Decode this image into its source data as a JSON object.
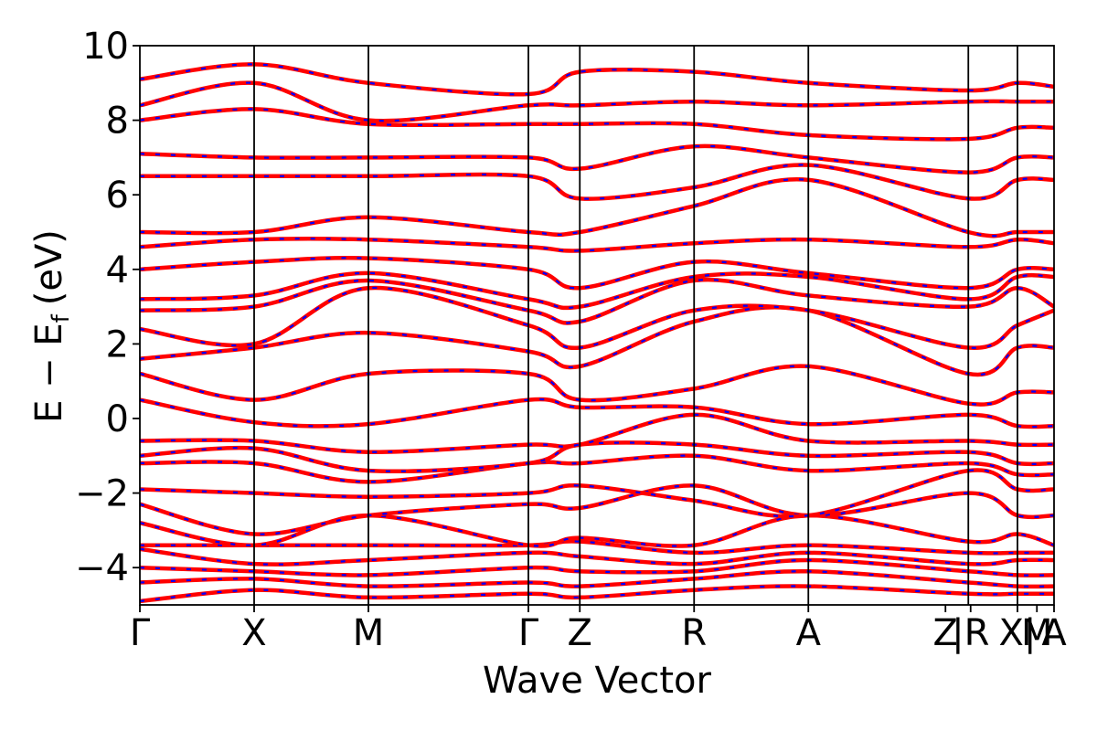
{
  "chart_data": {
    "type": "line",
    "title": "",
    "xlabel": "Wave Vector",
    "ylabel": "E − E",
    "ylabel_subscript": "f",
    "ylabel_unit": "(eV)",
    "ylim": [
      -5,
      10
    ],
    "yticks": [
      -4,
      -2,
      0,
      2,
      4,
      6,
      8,
      10
    ],
    "ytick_labels": [
      "−4",
      "−2",
      "0",
      "2",
      "4",
      "6",
      "8",
      "10"
    ],
    "path_labels": [
      "Γ",
      "X",
      "M",
      "Γ",
      "Z",
      "R",
      "A",
      "Z",
      "|R",
      "X|",
      "M",
      "A"
    ],
    "path_label_positions": [
      0,
      1,
      2,
      3.4,
      3.85,
      4.85,
      5.85,
      7.05,
      7.27,
      7.68,
      7.85,
      8.0
    ],
    "path_segment_boundaries": [
      0,
      1,
      2,
      3.4,
      3.85,
      4.85,
      5.85,
      7.25,
      7.68,
      8.0
    ],
    "grid": false,
    "legend": false,
    "series_colors": {
      "band": "#ff0000",
      "overlay": "#0000ff"
    },
    "series": [
      {
        "band": 1,
        "values": [
          [
            0,
            -4.9
          ],
          [
            1,
            -4.6
          ],
          [
            2,
            -4.8
          ],
          [
            3.4,
            -4.7
          ],
          [
            3.85,
            -4.8
          ],
          [
            4.85,
            -4.6
          ],
          [
            5.85,
            -4.5
          ],
          [
            7.25,
            -4.7
          ],
          [
            7.68,
            -4.7
          ],
          [
            8.0,
            -4.7
          ]
        ]
      },
      {
        "band": 2,
        "values": [
          [
            0,
            -4.4
          ],
          [
            1,
            -4.3
          ],
          [
            2,
            -4.5
          ],
          [
            3.4,
            -4.4
          ],
          [
            3.85,
            -4.5
          ],
          [
            4.85,
            -4.3
          ],
          [
            5.85,
            -4.1
          ],
          [
            7.25,
            -4.4
          ],
          [
            7.68,
            -4.5
          ],
          [
            8.0,
            -4.5
          ]
        ]
      },
      {
        "band": 3,
        "values": [
          [
            0,
            -4.0
          ],
          [
            1,
            -4.1
          ],
          [
            2,
            -4.2
          ],
          [
            3.4,
            -4.0
          ],
          [
            3.85,
            -4.1
          ],
          [
            4.85,
            -4.1
          ],
          [
            5.85,
            -3.8
          ],
          [
            7.25,
            -4.1
          ],
          [
            7.68,
            -4.2
          ],
          [
            8.0,
            -4.2
          ]
        ]
      },
      {
        "band": 4,
        "values": [
          [
            0,
            -3.5
          ],
          [
            1,
            -3.9
          ],
          [
            2,
            -3.8
          ],
          [
            3.4,
            -3.6
          ],
          [
            3.85,
            -3.7
          ],
          [
            4.85,
            -3.9
          ],
          [
            5.85,
            -3.6
          ],
          [
            7.25,
            -3.9
          ],
          [
            7.68,
            -3.8
          ],
          [
            8.0,
            -3.8
          ]
        ]
      },
      {
        "band": 5,
        "values": [
          [
            0,
            -3.4
          ],
          [
            1,
            -3.4
          ],
          [
            2,
            -3.4
          ],
          [
            3.4,
            -3.4
          ],
          [
            3.85,
            -3.3
          ],
          [
            4.85,
            -3.6
          ],
          [
            5.85,
            -3.4
          ],
          [
            7.25,
            -3.6
          ],
          [
            7.68,
            -3.6
          ],
          [
            8.0,
            -3.6
          ]
        ]
      },
      {
        "band": 6,
        "values": [
          [
            0,
            -2.8
          ],
          [
            1,
            -3.4
          ],
          [
            2,
            -2.6
          ],
          [
            3.4,
            -3.4
          ],
          [
            3.85,
            -3.2
          ],
          [
            4.85,
            -3.4
          ],
          [
            5.85,
            -2.6
          ],
          [
            7.25,
            -3.3
          ],
          [
            7.68,
            -3.1
          ],
          [
            8.0,
            -3.4
          ]
        ]
      },
      {
        "band": 7,
        "values": [
          [
            0,
            -2.3
          ],
          [
            1,
            -3.1
          ],
          [
            2,
            -2.6
          ],
          [
            3.4,
            -2.3
          ],
          [
            3.85,
            -2.4
          ],
          [
            4.85,
            -1.8
          ],
          [
            5.85,
            -2.6
          ],
          [
            7.25,
            -2.0
          ],
          [
            7.68,
            -2.6
          ],
          [
            8.0,
            -2.6
          ]
        ]
      },
      {
        "band": 8,
        "values": [
          [
            0,
            -1.9
          ],
          [
            1,
            -2.0
          ],
          [
            2,
            -2.1
          ],
          [
            3.4,
            -2.0
          ],
          [
            3.85,
            -1.8
          ],
          [
            4.85,
            -2.2
          ],
          [
            5.85,
            -2.6
          ],
          [
            7.25,
            -1.4
          ],
          [
            7.68,
            -1.9
          ],
          [
            8.0,
            -1.9
          ]
        ]
      },
      {
        "band": 9,
        "values": [
          [
            0,
            -1.2
          ],
          [
            1,
            -1.2
          ],
          [
            2,
            -1.7
          ],
          [
            3.4,
            -1.2
          ],
          [
            3.85,
            -1.2
          ],
          [
            4.85,
            -1.0
          ],
          [
            5.85,
            -1.4
          ],
          [
            7.25,
            -1.2
          ],
          [
            7.68,
            -1.5
          ],
          [
            8.0,
            -1.5
          ]
        ]
      },
      {
        "band": 10,
        "values": [
          [
            0,
            -1.0
          ],
          [
            1,
            -0.8
          ],
          [
            2,
            -1.4
          ],
          [
            3.4,
            -1.2
          ],
          [
            3.85,
            -0.7
          ],
          [
            4.85,
            -0.7
          ],
          [
            5.85,
            -1.0
          ],
          [
            7.25,
            -0.9
          ],
          [
            7.68,
            -1.2
          ],
          [
            8.0,
            -1.2
          ]
        ]
      },
      {
        "band": 11,
        "values": [
          [
            0,
            -0.6
          ],
          [
            1,
            -0.6
          ],
          [
            2,
            -0.9
          ],
          [
            3.4,
            -0.7
          ],
          [
            3.85,
            -0.7
          ],
          [
            4.85,
            0.1
          ],
          [
            5.85,
            -0.6
          ],
          [
            7.25,
            -0.6
          ],
          [
            7.68,
            -0.7
          ],
          [
            8.0,
            -0.7
          ]
        ]
      },
      {
        "band": 12,
        "values": [
          [
            0,
            0.5
          ],
          [
            1,
            -0.1
          ],
          [
            2,
            -0.15
          ],
          [
            3.4,
            0.5
          ],
          [
            3.85,
            0.3
          ],
          [
            4.85,
            0.3
          ],
          [
            5.85,
            -0.15
          ],
          [
            7.25,
            0.1
          ],
          [
            7.68,
            -0.2
          ],
          [
            8.0,
            -0.2
          ]
        ]
      },
      {
        "band": 13,
        "values": [
          [
            0,
            1.2
          ],
          [
            1,
            0.5
          ],
          [
            2,
            1.2
          ],
          [
            3.4,
            1.2
          ],
          [
            3.85,
            0.5
          ],
          [
            4.85,
            0.8
          ],
          [
            5.85,
            1.4
          ],
          [
            7.25,
            0.4
          ],
          [
            7.68,
            0.7
          ],
          [
            8.0,
            0.7
          ]
        ]
      },
      {
        "band": 14,
        "values": [
          [
            0,
            1.6
          ],
          [
            1,
            1.9
          ],
          [
            2,
            2.3
          ],
          [
            3.4,
            1.8
          ],
          [
            3.85,
            1.4
          ],
          [
            4.85,
            2.6
          ],
          [
            5.85,
            2.9
          ],
          [
            7.25,
            1.2
          ],
          [
            7.68,
            1.9
          ],
          [
            8.0,
            1.9
          ]
        ]
      },
      {
        "band": 15,
        "values": [
          [
            0,
            2.4
          ],
          [
            1,
            2.0
          ],
          [
            2,
            3.5
          ],
          [
            3.4,
            2.5
          ],
          [
            3.85,
            1.9
          ],
          [
            4.85,
            2.9
          ],
          [
            5.85,
            2.9
          ],
          [
            7.25,
            1.9
          ],
          [
            7.68,
            2.5
          ],
          [
            8.0,
            2.9
          ]
        ]
      },
      {
        "band": 16,
        "values": [
          [
            0,
            2.9
          ],
          [
            1,
            3.0
          ],
          [
            2,
            3.7
          ],
          [
            3.4,
            2.9
          ],
          [
            3.85,
            2.6
          ],
          [
            4.85,
            3.7
          ],
          [
            5.85,
            3.3
          ],
          [
            7.25,
            3.0
          ],
          [
            7.68,
            3.5
          ],
          [
            8.0,
            3.0
          ]
        ]
      },
      {
        "band": 17,
        "values": [
          [
            0,
            3.2
          ],
          [
            1,
            3.3
          ],
          [
            2,
            3.9
          ],
          [
            3.4,
            3.2
          ],
          [
            3.85,
            3.0
          ],
          [
            4.85,
            3.8
          ],
          [
            5.85,
            3.8
          ],
          [
            7.25,
            3.2
          ],
          [
            7.68,
            3.8
          ],
          [
            8.0,
            3.8
          ]
        ]
      },
      {
        "band": 18,
        "values": [
          [
            0,
            4.0
          ],
          [
            1,
            4.2
          ],
          [
            2,
            4.3
          ],
          [
            3.4,
            4.0
          ],
          [
            3.85,
            3.5
          ],
          [
            4.85,
            4.2
          ],
          [
            5.85,
            3.9
          ],
          [
            7.25,
            3.5
          ],
          [
            7.68,
            4.0
          ],
          [
            8.0,
            4.0
          ]
        ]
      },
      {
        "band": 19,
        "values": [
          [
            0,
            4.6
          ],
          [
            1,
            4.8
          ],
          [
            2,
            4.8
          ],
          [
            3.4,
            4.6
          ],
          [
            3.85,
            4.5
          ],
          [
            4.85,
            4.7
          ],
          [
            5.85,
            4.8
          ],
          [
            7.25,
            4.6
          ],
          [
            7.68,
            4.8
          ],
          [
            8.0,
            4.7
          ]
        ]
      },
      {
        "band": 20,
        "values": [
          [
            0,
            5.0
          ],
          [
            1,
            5.0
          ],
          [
            2,
            5.4
          ],
          [
            3.4,
            5.0
          ],
          [
            3.85,
            5.0
          ],
          [
            4.85,
            5.7
          ],
          [
            5.85,
            6.4
          ],
          [
            7.25,
            5.0
          ],
          [
            7.68,
            5.0
          ],
          [
            8.0,
            5.0
          ]
        ]
      },
      {
        "band": 21,
        "values": [
          [
            0,
            6.5
          ],
          [
            1,
            6.5
          ],
          [
            2,
            6.5
          ],
          [
            3.4,
            6.5
          ],
          [
            3.85,
            5.9
          ],
          [
            4.85,
            6.2
          ],
          [
            5.85,
            6.8
          ],
          [
            7.25,
            5.9
          ],
          [
            7.68,
            6.4
          ],
          [
            8.0,
            6.4
          ]
        ]
      },
      {
        "band": 22,
        "values": [
          [
            0,
            7.1
          ],
          [
            1,
            7.0
          ],
          [
            2,
            7.0
          ],
          [
            3.4,
            7.0
          ],
          [
            3.85,
            6.7
          ],
          [
            4.85,
            7.3
          ],
          [
            5.85,
            7.0
          ],
          [
            7.25,
            6.6
          ],
          [
            7.68,
            7.0
          ],
          [
            8.0,
            7.0
          ]
        ]
      },
      {
        "band": 23,
        "values": [
          [
            0,
            8.0
          ],
          [
            1,
            8.3
          ],
          [
            2,
            7.9
          ],
          [
            3.4,
            7.9
          ],
          [
            3.85,
            7.9
          ],
          [
            4.85,
            7.9
          ],
          [
            5.85,
            7.6
          ],
          [
            7.25,
            7.5
          ],
          [
            7.68,
            7.8
          ],
          [
            8.0,
            7.8
          ]
        ]
      },
      {
        "band": 24,
        "values": [
          [
            0,
            8.4
          ],
          [
            1,
            9.0
          ],
          [
            2,
            8.0
          ],
          [
            3.4,
            8.4
          ],
          [
            3.85,
            8.4
          ],
          [
            4.85,
            8.5
          ],
          [
            5.85,
            8.4
          ],
          [
            7.25,
            8.5
          ],
          [
            7.68,
            8.5
          ],
          [
            8.0,
            8.5
          ]
        ]
      },
      {
        "band": 25,
        "values": [
          [
            0,
            9.1
          ],
          [
            1,
            9.5
          ],
          [
            2,
            9.0
          ],
          [
            3.4,
            8.7
          ],
          [
            3.85,
            9.3
          ],
          [
            4.85,
            9.3
          ],
          [
            5.85,
            9.0
          ],
          [
            7.25,
            8.8
          ],
          [
            7.68,
            9.0
          ],
          [
            8.0,
            8.9
          ]
        ]
      }
    ]
  }
}
